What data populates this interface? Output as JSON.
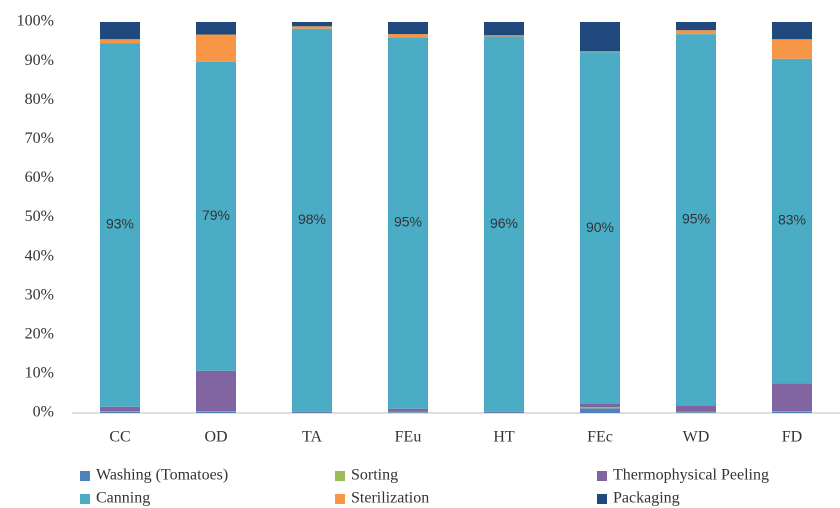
{
  "chart_data": {
    "type": "stacked_bar",
    "categories": [
      "CC",
      "OD",
      "TA",
      "FEu",
      "HT",
      "FEc",
      "WD",
      "FD"
    ],
    "series": [
      {
        "name": "Washing (Tomatoes)",
        "color": "#4f81bd",
        "values": [
          0.3,
          0.3,
          0.1,
          0.2,
          0.1,
          1.2,
          0.2,
          0.3
        ]
      },
      {
        "name": "Sorting",
        "color": "#9bbb59",
        "values": [
          0.1,
          0.1,
          0,
          0.1,
          0,
          0.3,
          0.1,
          0.1
        ]
      },
      {
        "name": "Thermophysical Peeling",
        "color": "#8064a2",
        "values": [
          1.2,
          10.4,
          0.2,
          0.8,
          0.2,
          0.8,
          1.6,
          7.2
        ]
      },
      {
        "name": "Canning",
        "color": "#4bacc6",
        "values": [
          93,
          79,
          98,
          95,
          96,
          90,
          95,
          83
        ],
        "value_labels": [
          "93%",
          "79%",
          "98%",
          "95%",
          "96%",
          "90%",
          "95%",
          "83%"
        ]
      },
      {
        "name": "Sterilization",
        "color": "#f79646",
        "values": [
          1.0,
          7.0,
          0.6,
          0.8,
          0.3,
          0.2,
          1.0,
          5.0
        ]
      },
      {
        "name": "Packaging",
        "color": "#1f497d",
        "values": [
          4.4,
          3.2,
          1.1,
          3.1,
          3.4,
          7.5,
          2.1,
          4.4
        ]
      }
    ],
    "ylim": [
      0,
      100
    ],
    "yticks": [
      {
        "value": 0,
        "label": "0%"
      },
      {
        "value": 10,
        "label": "10%"
      },
      {
        "value": 20,
        "label": "20%"
      },
      {
        "value": 30,
        "label": "30%"
      },
      {
        "value": 40,
        "label": "40%"
      },
      {
        "value": 50,
        "label": "50%"
      },
      {
        "value": 60,
        "label": "60%"
      },
      {
        "value": 70,
        "label": "70%"
      },
      {
        "value": 80,
        "label": "80%"
      },
      {
        "value": 90,
        "label": "90%"
      },
      {
        "value": 100,
        "label": "100%"
      }
    ],
    "legend": "bottom"
  }
}
